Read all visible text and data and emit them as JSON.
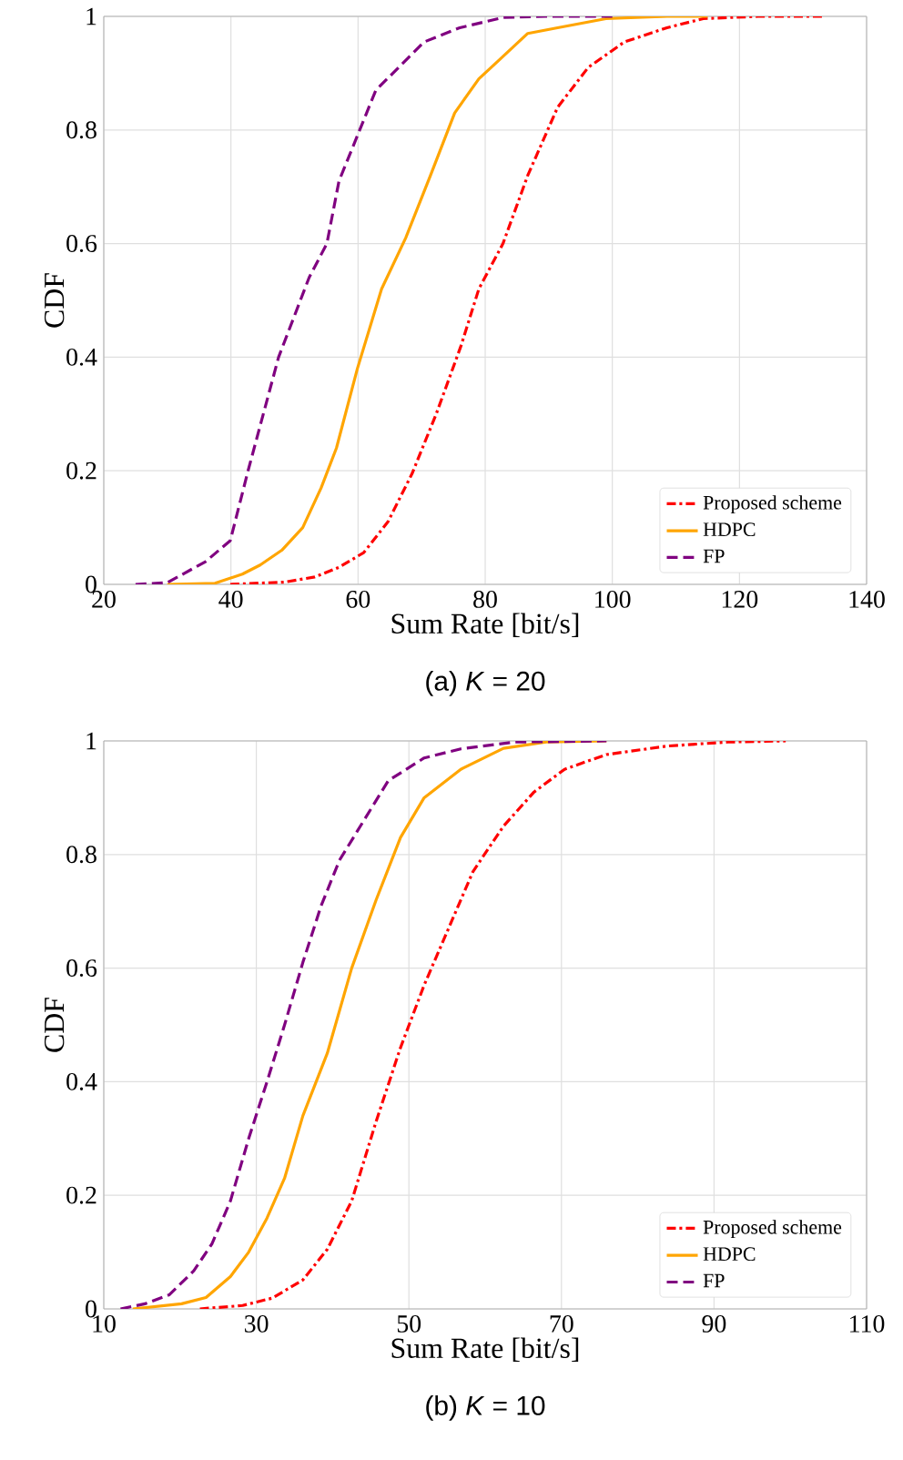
{
  "chart_data": [
    {
      "type": "line",
      "title": "(a) *K* = 20",
      "xlabel": "Sum Rate  [bit/s]",
      "ylabel": "CDF",
      "xlim": [
        20,
        140
      ],
      "ylim": [
        0,
        1
      ],
      "xticks": [
        20,
        40,
        60,
        80,
        100,
        120,
        140
      ],
      "yticks": [
        0,
        0.2,
        0.4,
        0.6,
        0.8,
        1
      ],
      "grid": true,
      "legend": "bottom right",
      "series": [
        {
          "name": "Proposed scheme",
          "color": "#ff0000",
          "line_style": "dashdot",
          "x": [
            39.9,
            48.5,
            53.2,
            57,
            60.9,
            64.7,
            68.5,
            72.3,
            76.2,
            79,
            82.8,
            86.7,
            91.4,
            96.2,
            101.9,
            108.6,
            114.3,
            122.9,
            133
          ],
          "values": [
            0,
            0.004,
            0.013,
            0.03,
            0.056,
            0.11,
            0.195,
            0.3,
            0.42,
            0.52,
            0.6,
            0.72,
            0.84,
            0.91,
            0.955,
            0.98,
            0.996,
            1,
            1
          ]
        },
        {
          "name": "HDPC",
          "color": "#ffa500",
          "line_style": "solid",
          "x": [
            30,
            37.5,
            41.8,
            44.6,
            48,
            51.3,
            54.2,
            56.6,
            59.9,
            63.7,
            67.5,
            71.4,
            75.2,
            79,
            81.9,
            86.7,
            91.4,
            99,
            108.6,
            115
          ],
          "values": [
            0,
            0.002,
            0.018,
            0.034,
            0.06,
            0.1,
            0.17,
            0.24,
            0.38,
            0.52,
            0.61,
            0.72,
            0.83,
            0.89,
            0.92,
            0.97,
            0.98,
            0.996,
            1,
            1
          ]
        },
        {
          "name": "FP",
          "color": "#800080",
          "line_style": "dashed",
          "x": [
            25,
            30,
            36,
            39.9,
            42.7,
            47.5,
            52.3,
            55.1,
            57,
            59.9,
            62.8,
            70.4,
            76,
            82.8,
            89.5,
            100
          ],
          "values": [
            0,
            0.003,
            0.04,
            0.077,
            0.2,
            0.4,
            0.54,
            0.6,
            0.71,
            0.79,
            0.87,
            0.955,
            0.98,
            0.998,
            1,
            1
          ]
        }
      ]
    },
    {
      "type": "line",
      "title": "(b) *K* = 10",
      "xlabel": "Sum Rate  [bit/s]",
      "ylabel": "CDF",
      "xlim": [
        10,
        110
      ],
      "ylim": [
        0,
        1
      ],
      "xticks": [
        10,
        30,
        50,
        70,
        90,
        110
      ],
      "yticks": [
        0,
        0.2,
        0.4,
        0.6,
        0.8,
        1
      ],
      "grid": true,
      "legend": "bottom right",
      "series": [
        {
          "name": "Proposed scheme",
          "color": "#ff0000",
          "line_style": "dashdot",
          "x": [
            22.6,
            28.2,
            32.1,
            36.1,
            39.3,
            42.5,
            45.7,
            48.9,
            52,
            55.2,
            58.4,
            62.4,
            66.4,
            70.4,
            75.9,
            83.9,
            91.8,
            99.4
          ],
          "values": [
            0,
            0.006,
            0.019,
            0.051,
            0.105,
            0.19,
            0.33,
            0.46,
            0.57,
            0.67,
            0.77,
            0.85,
            0.91,
            0.95,
            0.976,
            0.991,
            0.998,
            1
          ]
        },
        {
          "name": "HDPC",
          "color": "#ffa500",
          "line_style": "solid",
          "x": [
            13.8,
            20.2,
            23.4,
            26.6,
            29,
            31.4,
            33.7,
            36.1,
            39.3,
            42.5,
            45.7,
            48.9,
            52,
            56.8,
            62.4,
            68,
            75.9
          ],
          "values": [
            0,
            0.009,
            0.02,
            0.057,
            0.1,
            0.16,
            0.23,
            0.34,
            0.45,
            0.6,
            0.72,
            0.83,
            0.9,
            0.95,
            0.987,
            0.998,
            1
          ]
        },
        {
          "name": "FP",
          "color": "#800080",
          "line_style": "dashed",
          "x": [
            12.2,
            15.4,
            18.6,
            21.8,
            24.2,
            26.6,
            29,
            31.4,
            33.7,
            36.1,
            38.5,
            40.9,
            44.1,
            47.3,
            52,
            56.8,
            63.9,
            75.9
          ],
          "values": [
            0,
            0.009,
            0.025,
            0.067,
            0.115,
            0.19,
            0.3,
            0.4,
            0.5,
            0.61,
            0.71,
            0.79,
            0.86,
            0.93,
            0.97,
            0.986,
            0.998,
            1
          ]
        }
      ]
    }
  ]
}
